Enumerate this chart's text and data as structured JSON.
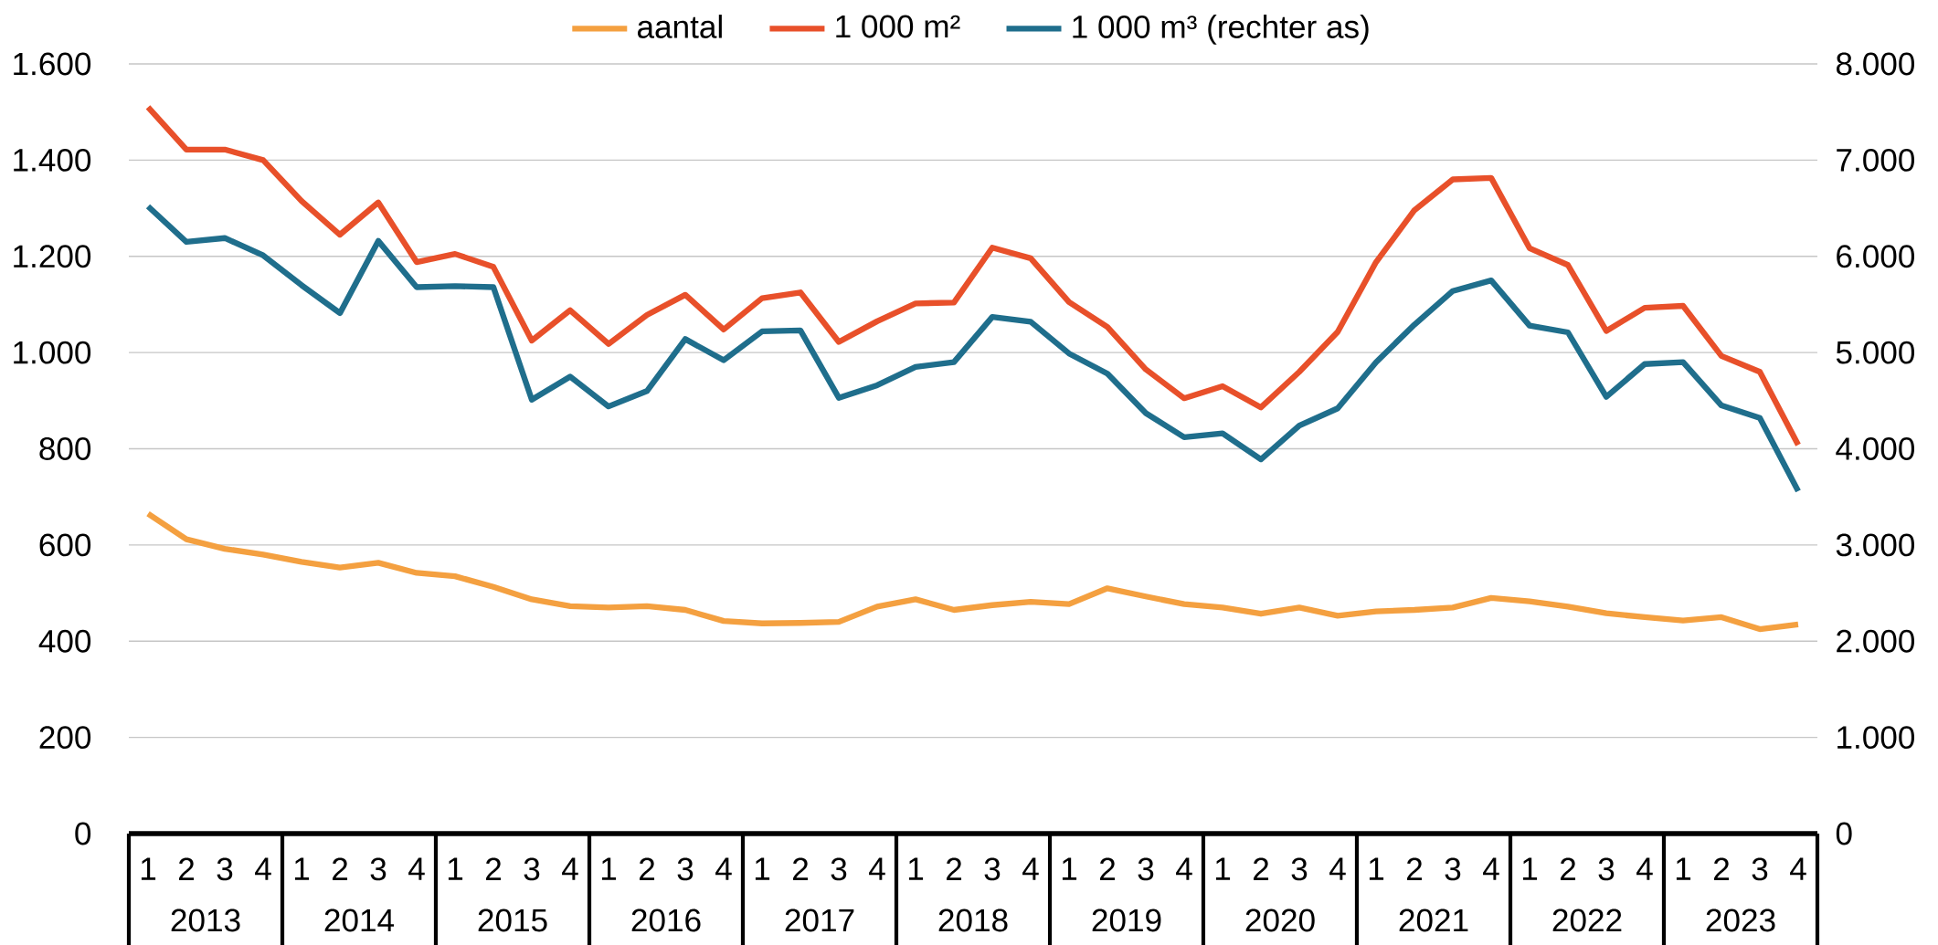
{
  "chart_data": {
    "type": "line",
    "categories": [
      "1",
      "2",
      "3",
      "4",
      "1",
      "2",
      "3",
      "4",
      "1",
      "2",
      "3",
      "4",
      "1",
      "2",
      "3",
      "4",
      "1",
      "2",
      "3",
      "4",
      "1",
      "2",
      "3",
      "4",
      "1",
      "2",
      "3",
      "4",
      "1",
      "2",
      "3",
      "4",
      "1",
      "2",
      "3",
      "4",
      "1",
      "2",
      "3",
      "4",
      "1",
      "2",
      "3",
      "4"
    ],
    "annotations": [
      "2013",
      "2014",
      "2015",
      "2016",
      "2017",
      "2018",
      "2019",
      "2020",
      "2021",
      "2022",
      "2023"
    ],
    "series": [
      {
        "name": "aantal",
        "color": "#f4a040",
        "values": [
          665,
          612,
          592,
          580,
          565,
          553,
          563,
          542,
          535,
          513,
          487,
          473,
          470,
          473,
          465,
          442,
          437,
          438,
          440,
          472,
          487,
          465,
          475,
          482,
          477,
          510,
          493,
          477,
          470,
          457,
          470,
          453,
          462,
          465,
          470,
          490,
          483,
          472,
          458,
          450,
          443,
          450,
          425,
          435
        ]
      },
      {
        "name": "1 000 m²",
        "color": "#e8502a",
        "values": [
          1510,
          1422,
          1422,
          1400,
          1315,
          1245,
          1312,
          1188,
          1205,
          1178,
          1025,
          1088,
          1018,
          1078,
          1120,
          1048,
          1113,
          1125,
          1022,
          1065,
          1102,
          1104,
          1218,
          1196,
          1105,
          1053,
          965,
          905,
          930,
          886,
          960,
          1043,
          1188,
          1296,
          1360,
          1363,
          1217,
          1182,
          1045,
          1093,
          1097,
          993,
          960,
          808
        ]
      },
      {
        "name": "1 000 m³ (rechter as)",
        "color": "#1f6e8c",
        "axis": "y2",
        "values": [
          6520,
          6150,
          6190,
          6010,
          5700,
          5410,
          6160,
          5680,
          5690,
          5680,
          4510,
          4750,
          4440,
          4600,
          5140,
          4920,
          5220,
          5230,
          4530,
          4660,
          4850,
          4900,
          5370,
          5320,
          4990,
          4780,
          4370,
          4120,
          4160,
          3890,
          4240,
          4420,
          4900,
          5290,
          5640,
          5750,
          5280,
          5210,
          4540,
          4880,
          4900,
          4450,
          4320,
          3560
        ]
      }
    ],
    "ylim": [
      0,
      1600
    ],
    "yticks": [
      0,
      200,
      400,
      600,
      800,
      {
        "value": 1000,
        "label": "1.000"
      },
      {
        "value": 1200,
        "label": "1.200"
      },
      {
        "value": 1400,
        "label": "1.400"
      },
      {
        "value": 1600,
        "label": "1.600"
      }
    ],
    "y2lim": [
      0,
      8000
    ],
    "y2ticks": [
      0,
      {
        "value": 1000,
        "label": "1.000"
      },
      {
        "value": 2000,
        "label": "2.000"
      },
      {
        "value": 3000,
        "label": "3.000"
      },
      {
        "value": 4000,
        "label": "4.000"
      },
      {
        "value": 5000,
        "label": "5.000"
      },
      {
        "value": 6000,
        "label": "6.000"
      },
      {
        "value": 7000,
        "label": "7.000"
      },
      {
        "value": 8000,
        "label": "8.000"
      }
    ],
    "grid": "y",
    "legend": "top",
    "marker": "none",
    "line_style": "solid"
  }
}
